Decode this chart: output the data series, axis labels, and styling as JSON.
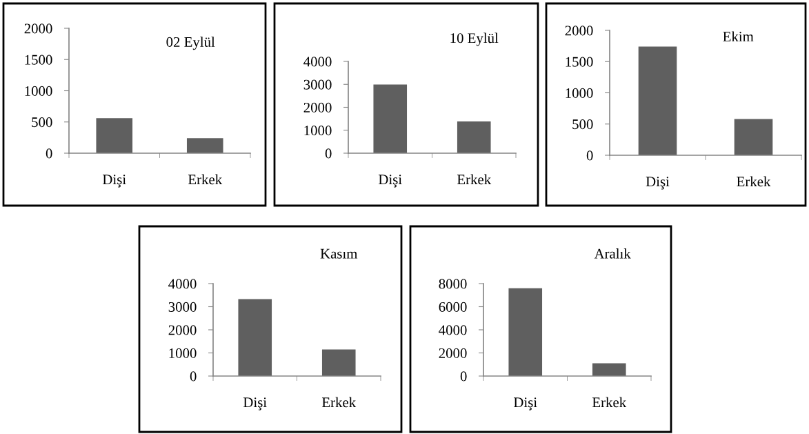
{
  "chart_data": [
    {
      "type": "bar",
      "title": "02 Eylül",
      "categories": [
        "Dişi",
        "Erkek"
      ],
      "values": [
        560,
        240
      ],
      "color": "#5f5f5f",
      "ylim": [
        0,
        2000
      ],
      "yticks": [
        0,
        500,
        1000,
        1500,
        2000
      ]
    },
    {
      "type": "bar",
      "title": "10 Eylül",
      "categories": [
        "Dişi",
        "Erkek"
      ],
      "values": [
        2990,
        1380
      ],
      "color": "#5f5f5f",
      "ylim": [
        0,
        4000
      ],
      "yticks": [
        0,
        1000,
        2000,
        3000,
        4000
      ]
    },
    {
      "type": "bar",
      "title": "Ekim",
      "categories": [
        "Dişi",
        "Erkek"
      ],
      "values": [
        1740,
        580
      ],
      "color": "#5f5f5f",
      "ylim": [
        0,
        2000
      ],
      "yticks": [
        0,
        500,
        1000,
        1500,
        2000
      ]
    },
    {
      "type": "bar",
      "title": "Kasım",
      "categories": [
        "Dişi",
        "Erkek"
      ],
      "values": [
        3330,
        1150
      ],
      "color": "#5f5f5f",
      "ylim": [
        0,
        4000
      ],
      "yticks": [
        0,
        1000,
        2000,
        3000,
        4000
      ]
    },
    {
      "type": "bar",
      "title": "Aralık",
      "categories": [
        "Dişi",
        "Erkek"
      ],
      "values": [
        7600,
        1110
      ],
      "color": "#5f5f5f",
      "ylim": [
        0,
        8000
      ],
      "yticks": [
        0,
        2000,
        4000,
        6000,
        8000
      ]
    }
  ]
}
